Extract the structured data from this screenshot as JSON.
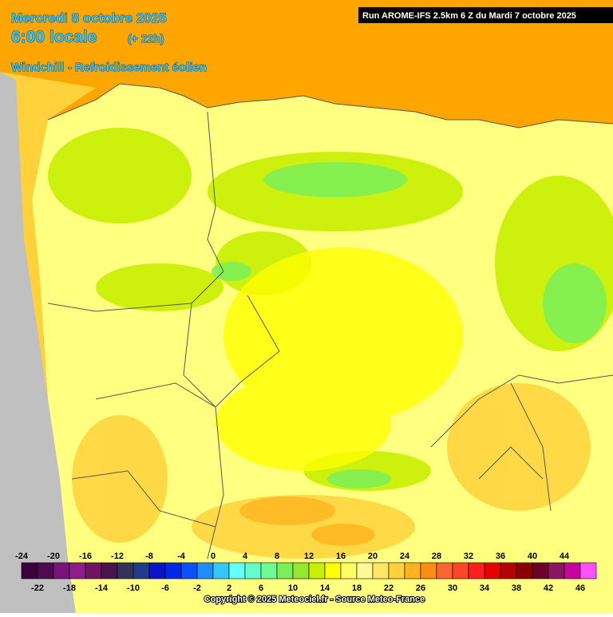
{
  "header": {
    "date": "Mercredi 8 octobre 2025",
    "time": "6:00 locale",
    "lead": "(+ 22h)",
    "parameter": "Windchill - Refroidissement éolien"
  },
  "run": "Run AROME-IFS 2.5km 6 Z du Mardi 7 octobre 2025",
  "legend": {
    "values": [
      -24,
      -22,
      -20,
      -18,
      -16,
      -14,
      -12,
      -10,
      -8,
      -6,
      -4,
      -2,
      0,
      2,
      4,
      6,
      8,
      10,
      12,
      14,
      16,
      18,
      20,
      22,
      24,
      26,
      28,
      30,
      32,
      34,
      36,
      38,
      40,
      42,
      44,
      46
    ],
    "colors": [
      "#3c003c",
      "#500a50",
      "#781478",
      "#8c1e8c",
      "#6e1464",
      "#4b1450",
      "#32325a",
      "#1e3c8c",
      "#0a14c8",
      "#0028e6",
      "#0a50ff",
      "#1e8cff",
      "#32c8ff",
      "#64ffff",
      "#64ffc8",
      "#6efa96",
      "#78f05a",
      "#96e632",
      "#c8f000",
      "#ffff00",
      "#ffff64",
      "#fffa96",
      "#ffe664",
      "#ffd23c",
      "#ffb41e",
      "#ff8c14",
      "#ff6432",
      "#ff4628",
      "#ff1e1e",
      "#e60000",
      "#b40000",
      "#8c0000",
      "#6e0028",
      "#8c1464",
      "#c800a0",
      "#ff50ff"
    ]
  },
  "copyright": "Copyright © 2025 Meteociel.fr - Source Meteo-France"
}
